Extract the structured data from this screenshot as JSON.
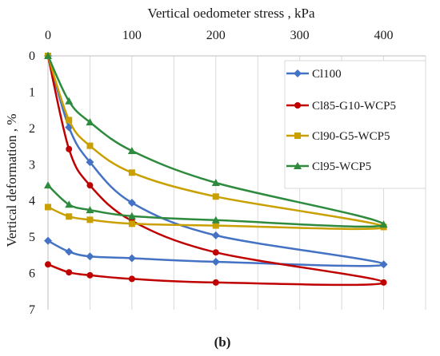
{
  "chart_data": {
    "type": "line",
    "xlabel": "Vertical oedometer stress , kPa",
    "ylabel": "Vertical deformation , %",
    "x_axis_position": "top",
    "y_axis_inverted": true,
    "xlim": [
      0,
      450
    ],
    "ylim": [
      0,
      7
    ],
    "xticks": [
      0,
      100,
      200,
      300,
      400
    ],
    "yticks": [
      0,
      1,
      2,
      3,
      4,
      5,
      6,
      7
    ],
    "grid": "vertical",
    "legend_position": "right",
    "caption": "(b)",
    "series": [
      {
        "name": "Cl100",
        "color": "#4472c4",
        "marker": "diamond",
        "points": [
          [
            0,
            0
          ],
          [
            25,
            1.97
          ],
          [
            50,
            2.93
          ],
          [
            100,
            4.05
          ],
          [
            200,
            4.95
          ],
          [
            400,
            5.75
          ],
          [
            200,
            5.68
          ],
          [
            100,
            5.58
          ],
          [
            50,
            5.53
          ],
          [
            25,
            5.4
          ],
          [
            0,
            5.1
          ]
        ]
      },
      {
        "name": "Cl85-G10-WCP5",
        "color": "#c00000",
        "marker": "circle",
        "points": [
          [
            0,
            0
          ],
          [
            25,
            2.57
          ],
          [
            50,
            3.57
          ],
          [
            100,
            4.55
          ],
          [
            200,
            5.42
          ],
          [
            400,
            6.25
          ],
          [
            200,
            6.25
          ],
          [
            100,
            6.15
          ],
          [
            50,
            6.05
          ],
          [
            25,
            5.97
          ],
          [
            0,
            5.75
          ]
        ]
      },
      {
        "name": "Cl90-G5-WCP5",
        "color": "#c9a000",
        "marker": "square",
        "points": [
          [
            0,
            0
          ],
          [
            25,
            1.77
          ],
          [
            50,
            2.48
          ],
          [
            100,
            3.22
          ],
          [
            200,
            3.88
          ],
          [
            400,
            4.72
          ],
          [
            200,
            4.68
          ],
          [
            100,
            4.63
          ],
          [
            50,
            4.52
          ],
          [
            25,
            4.43
          ],
          [
            0,
            4.17
          ]
        ]
      },
      {
        "name": "Cl95-WCP5",
        "color": "#2e8b3e",
        "marker": "triangle",
        "points": [
          [
            0,
            0
          ],
          [
            25,
            1.25
          ],
          [
            50,
            1.83
          ],
          [
            100,
            2.62
          ],
          [
            200,
            3.5
          ],
          [
            400,
            4.65
          ],
          [
            200,
            4.53
          ],
          [
            100,
            4.42
          ],
          [
            50,
            4.25
          ],
          [
            25,
            4.1
          ],
          [
            0,
            3.57
          ]
        ]
      }
    ]
  }
}
